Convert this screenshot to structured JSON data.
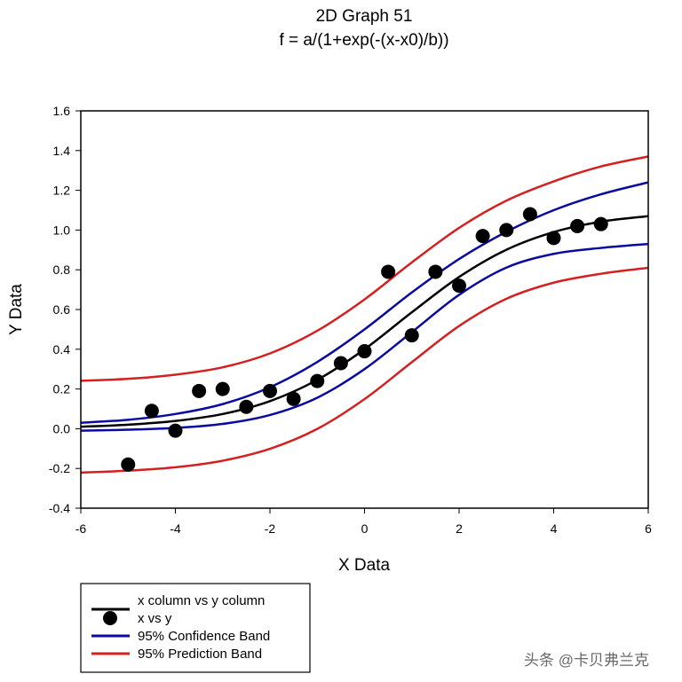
{
  "chart_data": {
    "type": "scatter",
    "title": "2D Graph 51",
    "subtitle": "f = a/(1+exp(-(x-x0)/b))",
    "xlabel": "X Data",
    "ylabel": "Y Data",
    "xlim": [
      -6,
      6
    ],
    "ylim": [
      -0.4,
      1.6
    ],
    "xticks": [
      "-6",
      "-4",
      "-2",
      "0",
      "2",
      "4",
      "6"
    ],
    "yticks": [
      "-0.4",
      "-0.2",
      "0.0",
      "0.2",
      "0.4",
      "0.6",
      "0.8",
      "1.0",
      "1.2",
      "1.4",
      "1.6"
    ],
    "grid": false,
    "legend_position": "bottom-left",
    "curve_x": [
      -6,
      -5,
      -4,
      -3,
      -2,
      -1,
      0,
      1,
      2,
      3,
      4,
      5,
      6
    ],
    "series": [
      {
        "name": "x column vs y column",
        "kind": "line",
        "color": "#000000",
        "y": [
          0.01,
          0.02,
          0.039,
          0.074,
          0.139,
          0.246,
          0.4,
          0.586,
          0.764,
          0.901,
          0.99,
          1.042,
          1.07
        ]
      },
      {
        "name": "x vs y",
        "kind": "points",
        "color": "#000000",
        "x": [
          -5,
          -4.5,
          -4,
          -3.5,
          -3,
          -2.5,
          -2,
          -1.5,
          -1,
          -0.5,
          0,
          0.5,
          1,
          1.5,
          2,
          2.5,
          3,
          3.5,
          4,
          4.5,
          5
        ],
        "y": [
          -0.18,
          0.09,
          -0.01,
          0.19,
          0.2,
          0.11,
          0.19,
          0.15,
          0.24,
          0.33,
          0.39,
          0.79,
          0.47,
          0.79,
          0.72,
          0.97,
          1.0,
          1.08,
          0.96,
          1.02,
          1.03
        ]
      },
      {
        "name": "95% Confidence Band",
        "kind": "band",
        "color": "#0a0aa0",
        "upper": [
          0.03,
          0.045,
          0.074,
          0.124,
          0.209,
          0.336,
          0.5,
          0.686,
          0.854,
          0.991,
          1.1,
          1.18,
          1.24
        ],
        "lower": [
          -0.01,
          -0.005,
          0.004,
          0.024,
          0.069,
          0.156,
          0.3,
          0.486,
          0.674,
          0.811,
          0.88,
          0.91,
          0.93
        ]
      },
      {
        "name": "95% Prediction Band",
        "kind": "band",
        "color": "#d42020",
        "upper": [
          0.241,
          0.251,
          0.272,
          0.309,
          0.379,
          0.493,
          0.651,
          0.837,
          1.011,
          1.148,
          1.245,
          1.32,
          1.37
        ],
        "lower": [
          -0.221,
          -0.211,
          -0.194,
          -0.161,
          -0.101,
          -0.001,
          0.149,
          0.335,
          0.517,
          0.654,
          0.735,
          0.78,
          0.81
        ]
      }
    ]
  },
  "watermark": "头条 @卡贝弗兰克"
}
